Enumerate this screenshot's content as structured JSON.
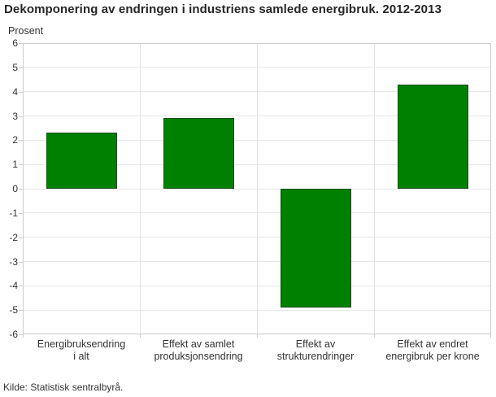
{
  "chart_data": {
    "type": "bar",
    "title": "Dekomponering av endringen i industriens samlede energibruk. 2012-2013",
    "ylabel": "Prosent",
    "xlabel": "",
    "categories": [
      "Energibruksendring\ni alt",
      "Effekt av samlet\nproduksjonsendring",
      "Effekt av\nstrukturendringer",
      "Effekt av endret\nenergibruk per krone"
    ],
    "values": [
      2.3,
      2.9,
      -4.9,
      4.3
    ],
    "ylim": [
      -6,
      6
    ],
    "yticks": [
      6,
      5,
      4,
      3,
      2,
      1,
      0,
      -1,
      -2,
      -3,
      -4,
      -5,
      -6
    ],
    "grid": "on",
    "legend": "none",
    "colors": {
      "bar_fill": "#008000",
      "bar_border": "#1d4d1d",
      "gridline": "#e6e6e6",
      "axis_line": "#cccccc",
      "text": "#333333",
      "title_text": "#262626"
    }
  },
  "source": "Kilde: Statistisk sentralbyrå."
}
